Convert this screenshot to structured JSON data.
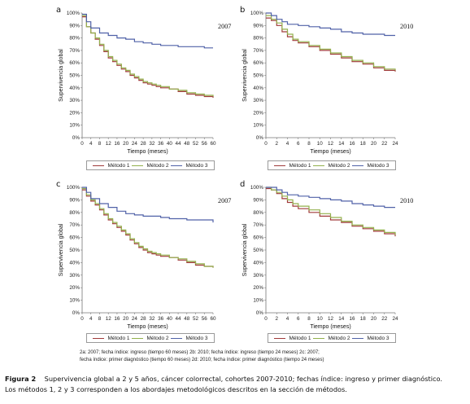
{
  "chart_data": [
    {
      "type": "line",
      "panel_label": "a",
      "cohort_label": "2007",
      "ylabel": "Supervivencia global",
      "xlabel": "Tiempo (meses)",
      "y_ticks": [
        "0%",
        "10%",
        "20%",
        "30%",
        "40%",
        "50%",
        "60%",
        "70%",
        "80%",
        "90%",
        "100%"
      ],
      "ylim": [
        0,
        100
      ],
      "x_ticks": [
        "0",
        "4",
        "8",
        "12",
        "16",
        "20",
        "24",
        "28",
        "32",
        "36",
        "40",
        "44",
        "48",
        "52",
        "56",
        "60"
      ],
      "xlim": [
        0,
        60
      ],
      "grid": false,
      "legend": "bottom",
      "series": [
        {
          "name": "Método 1",
          "color": "#a03a3a",
          "x": [
            0,
            2,
            4,
            6,
            8,
            10,
            12,
            14,
            16,
            18,
            20,
            22,
            24,
            26,
            28,
            30,
            32,
            34,
            36,
            40,
            44,
            48,
            52,
            56,
            60
          ],
          "y": [
            97,
            89,
            84,
            79,
            74,
            69,
            64,
            61,
            58,
            55,
            53,
            50,
            48,
            46,
            44,
            43,
            42,
            41,
            40,
            39,
            37,
            35,
            34,
            33,
            32
          ]
        },
        {
          "name": "Método 2",
          "color": "#93b14d",
          "x": [
            0,
            2,
            4,
            6,
            8,
            10,
            12,
            14,
            16,
            18,
            20,
            22,
            24,
            26,
            28,
            30,
            32,
            34,
            36,
            40,
            44,
            48,
            52,
            56,
            60
          ],
          "y": [
            98,
            89,
            84,
            80,
            75,
            70,
            65,
            62,
            59,
            56,
            54,
            51,
            49,
            47,
            45,
            44,
            43,
            42,
            41,
            39,
            38,
            36,
            35,
            34,
            33
          ]
        },
        {
          "name": "Método 3",
          "color": "#5062a8",
          "x": [
            0,
            2,
            4,
            8,
            12,
            16,
            20,
            24,
            28,
            32,
            36,
            40,
            44,
            48,
            52,
            56,
            60
          ],
          "y": [
            99,
            93,
            88,
            84,
            82,
            80,
            79,
            77,
            76,
            75,
            74,
            74,
            73,
            73,
            73,
            72,
            72
          ]
        }
      ]
    },
    {
      "type": "line",
      "panel_label": "b",
      "cohort_label": "2010",
      "ylabel": "Supervivencia global",
      "xlabel": "Tiempo (meses)",
      "y_ticks": [
        "0%",
        "10%",
        "20%",
        "30%",
        "40%",
        "50%",
        "60%",
        "70%",
        "80%",
        "90%",
        "100%"
      ],
      "ylim": [
        0,
        100
      ],
      "x_ticks": [
        "0",
        "2",
        "4",
        "6",
        "8",
        "10",
        "12",
        "14",
        "16",
        "18",
        "20",
        "22",
        "24"
      ],
      "xlim": [
        0,
        24
      ],
      "grid": false,
      "legend": "bottom",
      "series": [
        {
          "name": "Método 1",
          "color": "#a03a3a",
          "x": [
            0,
            1,
            2,
            3,
            4,
            5,
            6,
            8,
            10,
            12,
            14,
            16,
            18,
            20,
            22,
            24
          ],
          "y": [
            96,
            94,
            90,
            85,
            81,
            78,
            76,
            73,
            70,
            67,
            64,
            61,
            59,
            56,
            54,
            53
          ]
        },
        {
          "name": "Método 2",
          "color": "#93b14d",
          "x": [
            0,
            1,
            2,
            3,
            4,
            5,
            6,
            8,
            10,
            12,
            14,
            16,
            18,
            20,
            22,
            24
          ],
          "y": [
            98,
            95,
            92,
            87,
            83,
            79,
            77,
            74,
            71,
            68,
            65,
            62,
            60,
            57,
            55,
            54
          ]
        },
        {
          "name": "Método 3",
          "color": "#5062a8",
          "x": [
            0,
            1,
            2,
            3,
            4,
            6,
            8,
            10,
            12,
            14,
            16,
            18,
            20,
            22,
            24
          ],
          "y": [
            100,
            98,
            95,
            93,
            91,
            90,
            89,
            88,
            87,
            85,
            84,
            83,
            83,
            82,
            82
          ]
        }
      ]
    },
    {
      "type": "line",
      "panel_label": "c",
      "cohort_label": "2007",
      "ylabel": "Supervivencia global",
      "xlabel": "Tiempo (meses)",
      "y_ticks": [
        "0%",
        "10%",
        "20%",
        "30%",
        "40%",
        "50%",
        "60%",
        "70%",
        "80%",
        "90%",
        "100%"
      ],
      "ylim": [
        0,
        100
      ],
      "x_ticks": [
        "0",
        "4",
        "8",
        "12",
        "16",
        "20",
        "24",
        "28",
        "32",
        "36",
        "40",
        "44",
        "48",
        "52",
        "56",
        "60"
      ],
      "xlim": [
        0,
        60
      ],
      "grid": false,
      "legend": "bottom",
      "series": [
        {
          "name": "Método 1",
          "color": "#a03a3a",
          "x": [
            0,
            2,
            4,
            6,
            8,
            10,
            12,
            14,
            16,
            18,
            20,
            22,
            24,
            26,
            28,
            30,
            32,
            34,
            36,
            40,
            44,
            48,
            52,
            56,
            60
          ],
          "y": [
            98,
            93,
            89,
            86,
            82,
            78,
            74,
            71,
            68,
            65,
            62,
            58,
            55,
            52,
            50,
            48,
            47,
            46,
            45,
            44,
            42,
            40,
            38,
            37,
            36
          ]
        },
        {
          "name": "Método 2",
          "color": "#93b14d",
          "x": [
            0,
            2,
            4,
            6,
            8,
            10,
            12,
            14,
            16,
            18,
            20,
            22,
            24,
            26,
            28,
            30,
            32,
            34,
            36,
            40,
            44,
            48,
            52,
            56,
            60
          ],
          "y": [
            99,
            94,
            90,
            87,
            83,
            79,
            75,
            72,
            69,
            66,
            63,
            59,
            56,
            53,
            51,
            49,
            48,
            47,
            46,
            44,
            43,
            41,
            39,
            37,
            36
          ]
        },
        {
          "name": "Método 3",
          "color": "#5062a8",
          "x": [
            0,
            2,
            4,
            8,
            12,
            16,
            20,
            24,
            28,
            32,
            36,
            40,
            44,
            48,
            52,
            56,
            59,
            60
          ],
          "y": [
            100,
            96,
            91,
            87,
            84,
            81,
            79,
            78,
            77,
            77,
            76,
            75,
            75,
            74,
            74,
            74,
            74,
            72
          ]
        }
      ]
    },
    {
      "type": "line",
      "panel_label": "d",
      "cohort_label": "2010",
      "ylabel": "Supervivencia global",
      "xlabel": "Tiempo (meses)",
      "y_ticks": [
        "0%",
        "10%",
        "20%",
        "30%",
        "40%",
        "50%",
        "60%",
        "70%",
        "80%",
        "90%",
        "100%"
      ],
      "ylim": [
        0,
        100
      ],
      "x_ticks": [
        "0",
        "2",
        "4",
        "6",
        "8",
        "10",
        "12",
        "14",
        "16",
        "18",
        "20",
        "22",
        "24"
      ],
      "xlim": [
        0,
        24
      ],
      "grid": false,
      "legend": "bottom",
      "series": [
        {
          "name": "Método 1",
          "color": "#a03a3a",
          "x": [
            0,
            1,
            2,
            3,
            4,
            5,
            6,
            8,
            10,
            12,
            14,
            16,
            18,
            20,
            22,
            24
          ],
          "y": [
            99,
            98,
            95,
            91,
            88,
            85,
            83,
            80,
            77,
            74,
            72,
            69,
            67,
            65,
            63,
            61
          ]
        },
        {
          "name": "Método 2",
          "color": "#93b14d",
          "x": [
            0,
            1,
            2,
            3,
            4,
            5,
            6,
            8,
            10,
            12,
            14,
            16,
            18,
            20,
            22,
            24
          ],
          "y": [
            100,
            98,
            96,
            93,
            90,
            87,
            85,
            82,
            79,
            76,
            73,
            70,
            68,
            66,
            64,
            62
          ]
        },
        {
          "name": "Método 3",
          "color": "#5062a8",
          "x": [
            0,
            1,
            2,
            3,
            4,
            6,
            8,
            10,
            12,
            14,
            16,
            18,
            20,
            22,
            24
          ],
          "y": [
            100,
            100,
            98,
            96,
            94,
            93,
            92,
            91,
            90,
            89,
            87,
            86,
            85,
            84,
            84
          ]
        }
      ]
    }
  ],
  "notes": [
    "2a: 2007; fecha índice: ingreso (tiempo 60 meses) 2b: 2010; fecha índice: ingreso (tiempo 24 meses) 2c: 2007;",
    "fecha índice: primer diagnóstico (tiempo 60 meses) 2d: 2010; fecha índice: primer diagnóstico (tiempo 24 meses)"
  ],
  "caption": {
    "label": "Figura 2",
    "line1": "Supervivencia global a 2 y 5 años, cáncer colorrectal, cohortes 2007-2010; fechas índice: ingreso y primer diagnóstico.",
    "line2": "Los métodos 1, 2 y 3 corresponden a los abordajes metodológicos descritos en la sección de métodos."
  }
}
